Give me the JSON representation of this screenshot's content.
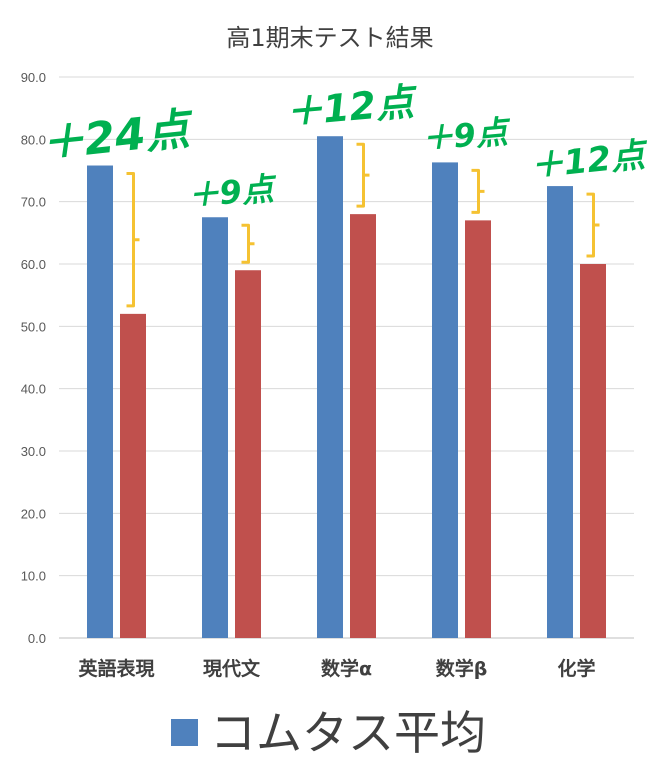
{
  "chart_data": {
    "type": "bar",
    "title": "高1期末テスト結果",
    "categories": [
      "英語表現",
      "現代文",
      "数学α",
      "数学β",
      "化学"
    ],
    "series": [
      {
        "name": "コムタス平均",
        "color": "#4f81bd",
        "values": [
          75.8,
          67.5,
          80.5,
          76.3,
          72.5
        ]
      },
      {
        "color": "#c0504d",
        "values": [
          52.0,
          59.0,
          68.0,
          67.0,
          60.0
        ]
      }
    ],
    "ylim": [
      0,
      90
    ],
    "yticks": [
      "0.0",
      "10.0",
      "20.0",
      "30.0",
      "40.0",
      "50.0",
      "60.0",
      "70.0",
      "80.0",
      "90.0"
    ],
    "grid": true,
    "legend_position": "bottom",
    "annotations": [
      {
        "category": "英語表現",
        "text": "＋24点"
      },
      {
        "category": "現代文",
        "text": "＋9点"
      },
      {
        "category": "数学α",
        "text": "＋12点"
      },
      {
        "category": "数学β",
        "text": "＋9点"
      },
      {
        "category": "化学",
        "text": "＋12点"
      }
    ],
    "bracket_color": "#f5c232",
    "annotation_color": "#00b050"
  }
}
